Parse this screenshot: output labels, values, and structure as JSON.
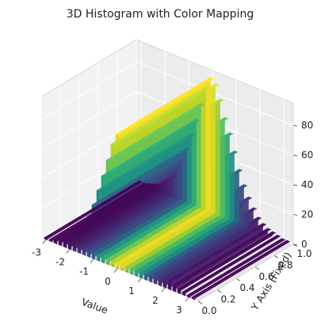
{
  "chart_data": {
    "type": "bar3d",
    "title": "3D Histogram with Color Mapping",
    "xlabel": "Value",
    "ylabel": "Y Axis (Fixed)",
    "zlabel": "",
    "colormap": "viridis",
    "xlim": [
      -3.2,
      3.4
    ],
    "ylim": [
      0,
      1
    ],
    "zlim": [
      0,
      95
    ],
    "x_ticks": [
      -3,
      -2,
      -1,
      0,
      1,
      2,
      3
    ],
    "y_ticks": [
      0.0,
      0.2,
      0.4,
      0.6,
      0.8,
      1.0
    ],
    "z_ticks": [
      0,
      20,
      40,
      60,
      80
    ],
    "x_tick_labels": [
      "-3",
      "-2",
      "-1",
      "0",
      "1",
      "2",
      "3"
    ],
    "y_tick_labels": [
      "0.0",
      "0.2",
      "0.4",
      "0.6",
      "0.8",
      "1.0"
    ],
    "z_tick_labels": [
      "0",
      "20",
      "40",
      "60",
      "80"
    ],
    "grid": true,
    "bar_depth": [
      0,
      1
    ],
    "bins": [
      {
        "x": -3.0,
        "value": 1
      },
      {
        "x": -2.8,
        "value": 1
      },
      {
        "x": -2.6,
        "value": 2
      },
      {
        "x": -2.4,
        "value": 3
      },
      {
        "x": -2.2,
        "value": 4
      },
      {
        "x": -2.0,
        "value": 6
      },
      {
        "x": -1.8,
        "value": 10
      },
      {
        "x": -1.6,
        "value": 14
      },
      {
        "x": -1.4,
        "value": 20
      },
      {
        "x": -1.2,
        "value": 27
      },
      {
        "x": -1.0,
        "value": 36
      },
      {
        "x": -0.8,
        "value": 47
      },
      {
        "x": -0.6,
        "value": 58
      },
      {
        "x": -0.4,
        "value": 70
      },
      {
        "x": -0.2,
        "value": 82
      },
      {
        "x": 0.0,
        "value": 90
      },
      {
        "x": 0.2,
        "value": 87
      },
      {
        "x": 0.4,
        "value": 78
      },
      {
        "x": 0.6,
        "value": 67
      },
      {
        "x": 0.8,
        "value": 58
      },
      {
        "x": 1.0,
        "value": 47
      },
      {
        "x": 1.2,
        "value": 36
      },
      {
        "x": 1.4,
        "value": 27
      },
      {
        "x": 1.6,
        "value": 20
      },
      {
        "x": 1.8,
        "value": 14
      },
      {
        "x": 2.0,
        "value": 9
      },
      {
        "x": 2.2,
        "value": 6
      },
      {
        "x": 2.4,
        "value": 4
      },
      {
        "x": 2.6,
        "value": 3
      },
      {
        "x": 2.8,
        "value": 2
      },
      {
        "x": 3.0,
        "value": 1
      },
      {
        "x": 3.2,
        "value": 1
      }
    ]
  }
}
